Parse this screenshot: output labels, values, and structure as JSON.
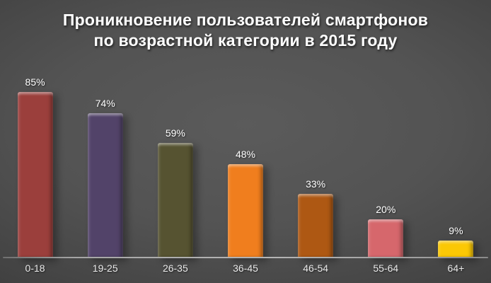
{
  "slide": {
    "title_lines": [
      "Проникновение пользователей смартфонов",
      "по возрастной категории в 2015 году"
    ],
    "background_center": "#5b5b5b",
    "background_edge": "#1f1f1f",
    "axis_line_color": "#a6a6a6",
    "text_color": "#ffffff"
  },
  "chart_data": {
    "type": "bar",
    "title": "Проникновение пользователей смартфонов по возрастной категории в 2015 году",
    "xlabel": "",
    "ylabel": "",
    "categories": [
      "0-18",
      "19-25",
      "26-35",
      "36-45",
      "46-54",
      "55-64",
      "64+"
    ],
    "values": [
      85,
      74,
      59,
      48,
      33,
      20,
      9
    ],
    "value_suffix": "%",
    "ylim": [
      0,
      100
    ],
    "grid": false,
    "legend": false,
    "value_labels_position": "above-bar",
    "bars": [
      {
        "category": "0-18",
        "value": 85,
        "label": "85%",
        "color": "#9b3f3c"
      },
      {
        "category": "19-25",
        "value": 74,
        "label": "74%",
        "color": "#524369"
      },
      {
        "category": "26-35",
        "value": 59,
        "label": "59%",
        "color": "#565331"
      },
      {
        "category": "36-45",
        "value": 48,
        "label": "48%",
        "color": "#f07e1e"
      },
      {
        "category": "46-54",
        "value": 33,
        "label": "33%",
        "color": "#ae5813"
      },
      {
        "category": "55-64",
        "value": 20,
        "label": "20%",
        "color": "#d6676c"
      },
      {
        "category": "64+",
        "value": 9,
        "label": "9%",
        "color": "#fbc805"
      }
    ]
  }
}
